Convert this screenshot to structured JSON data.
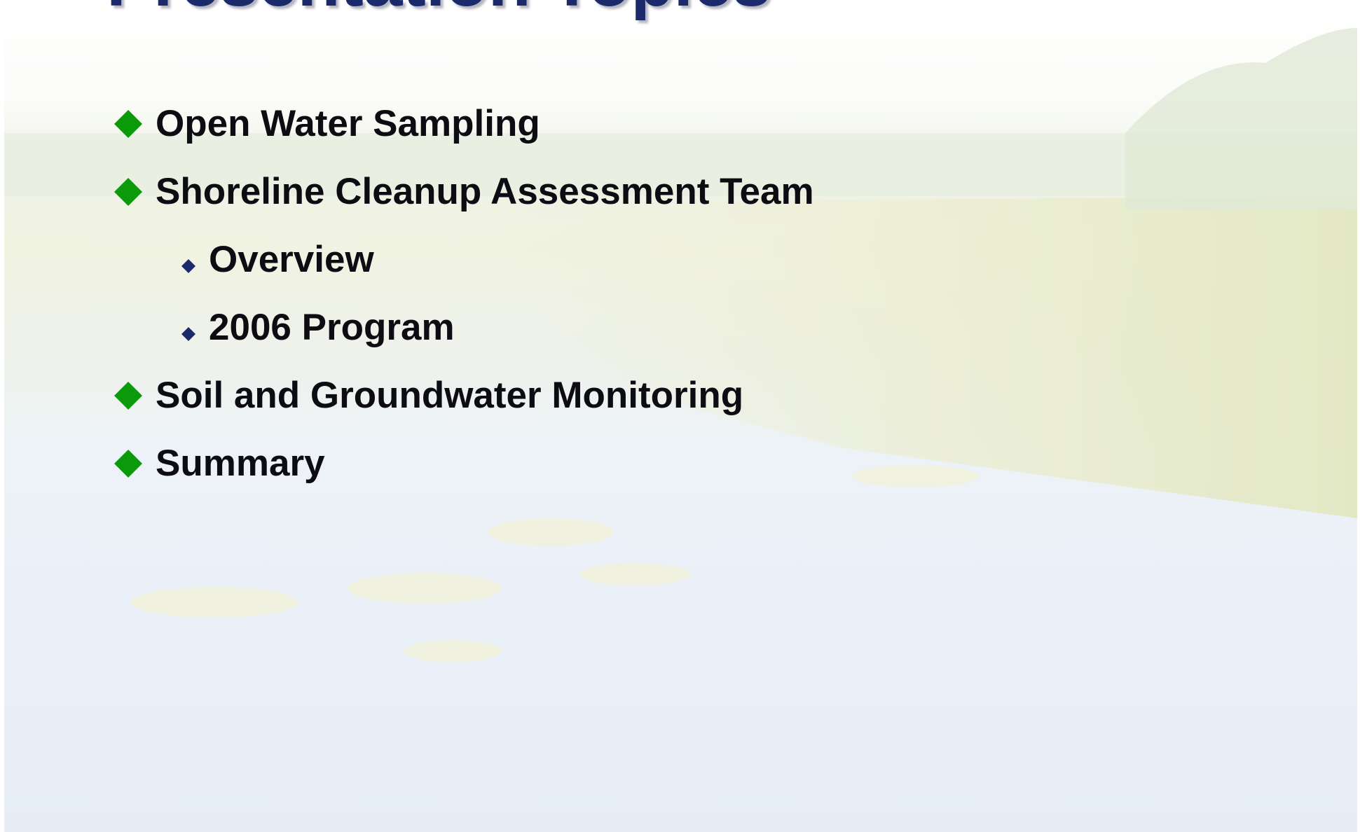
{
  "slide": {
    "title": "Presentation Topics",
    "bullets": [
      {
        "text": "Open Water Sampling"
      },
      {
        "text": "Shoreline Cleanup Assessment Team",
        "sub": [
          "Overview",
          "2006 Program"
        ]
      },
      {
        "text": "Soil and Groundwater Monitoring"
      },
      {
        "text": "Summary"
      }
    ]
  }
}
